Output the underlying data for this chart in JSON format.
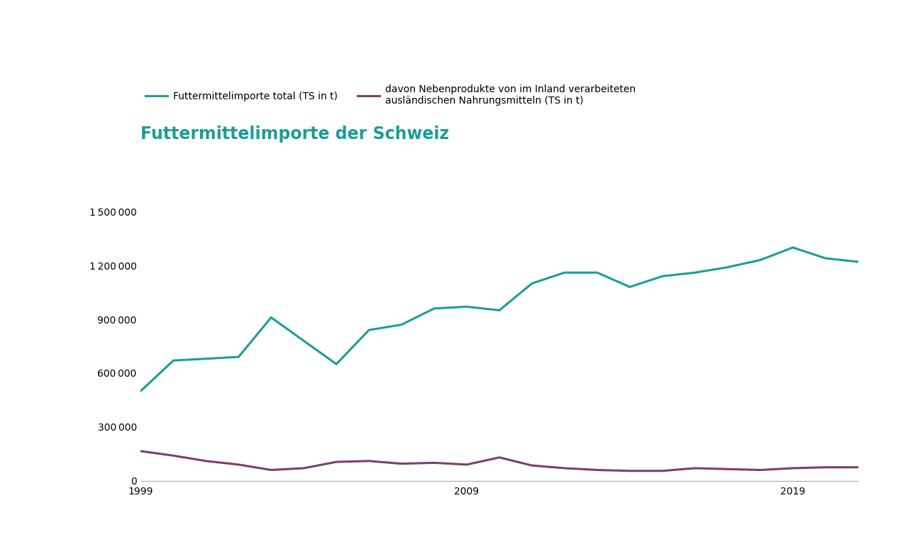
{
  "title": "Futtermittelimporte der Schweiz",
  "title_color": "#1a9e96",
  "years": [
    1999,
    2000,
    2001,
    2002,
    2003,
    2004,
    2005,
    2006,
    2007,
    2008,
    2009,
    2010,
    2011,
    2012,
    2013,
    2014,
    2015,
    2016,
    2017,
    2018,
    2019,
    2020,
    2021
  ],
  "total_imports": [
    500000,
    670000,
    680000,
    690000,
    910000,
    780000,
    650000,
    840000,
    870000,
    960000,
    970000,
    950000,
    1100000,
    1160000,
    1160000,
    1080000,
    1140000,
    1160000,
    1190000,
    1230000,
    1300000,
    1240000,
    1220000
  ],
  "byproducts": [
    165000,
    140000,
    110000,
    90000,
    60000,
    70000,
    105000,
    110000,
    95000,
    100000,
    90000,
    130000,
    85000,
    70000,
    60000,
    55000,
    55000,
    70000,
    65000,
    60000,
    70000,
    75000,
    75000
  ],
  "line1_color": "#1a9e96",
  "line2_color": "#7b3f6e",
  "legend1": "Futtermittelimporte total (TS in t)",
  "legend2_line1": "davon Nebenprodukte von im Inland verarbeiteten",
  "legend2_line2": "ausländischen Nahrungsmitteln (TS in t)",
  "ytick_labels": [
    "0",
    "300 000",
    "600 000",
    "900 000",
    "1 200 000",
    "1 500 000"
  ],
  "ytick_values": [
    0,
    300000,
    600000,
    900000,
    1200000,
    1500000
  ],
  "xticks": [
    1999,
    2009,
    2019
  ],
  "ylim": [
    0,
    1620000
  ],
  "xlim": [
    1999,
    2021
  ],
  "background_color": "#ffffff",
  "line_width": 2.2,
  "title_fontsize": 17,
  "legend_fontsize": 10,
  "tick_fontsize": 10
}
